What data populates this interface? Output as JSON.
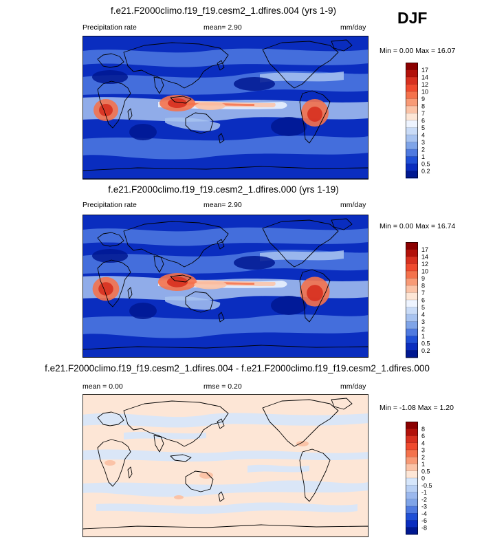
{
  "season": "DJF",
  "panels": [
    {
      "id": "top",
      "title": "f.e21.F2000climo.f19_f19.cesm2_1.dfires.004 (yrs 1-9)",
      "left_label": "Precipitation rate",
      "center_label": "mean=  2.90",
      "right_label": "mm/day",
      "minmax": "Min =  0.00 Max = 16.07"
    },
    {
      "id": "middle",
      "title": "f.e21.F2000climo.f19_f19.cesm2_1.dfires.000 (yrs 1-19)",
      "left_label": "Precipitation rate",
      "center_label": "mean=  2.90",
      "right_label": "mm/day",
      "minmax": "Min =  0.00 Max = 16.74"
    },
    {
      "id": "bottom",
      "title": "f.e21.F2000climo.f19_f19.cesm2_1.dfires.004 - f.e21.F2000climo.f19_f19.cesm2_1.dfires.000",
      "left_label": "mean =  0.00",
      "center_label": "rmse =  0.20",
      "right_label": "mm/day",
      "minmax": "Min = -1.08 Max =  1.20"
    }
  ],
  "chart_data": [
    {
      "type": "heatmap",
      "title": "f.e21.F2000climo.f19_f19.cesm2_1.dfires.004 (yrs 1-9)",
      "variable": "Precipitation rate",
      "units": "mm/day",
      "mean": 2.9,
      "min": 0.0,
      "max": 16.07,
      "colorbar_levels": [
        "17",
        "14",
        "12",
        "10",
        "9",
        "8",
        "7",
        "6",
        "5",
        "4",
        "3",
        "2",
        "1",
        "0.5",
        "0.2"
      ],
      "colorbar_colors": [
        "#8b0000",
        "#b2110a",
        "#d7301f",
        "#ef4a2e",
        "#f4724c",
        "#f89a76",
        "#fbc3a7",
        "#fde6d6",
        "#eef4ff",
        "#c9dbf7",
        "#a8c3f0",
        "#7fa4e8",
        "#4f7ae0",
        "#1f4fd6",
        "#0a2dbf",
        "#001891"
      ]
    },
    {
      "type": "heatmap",
      "title": "f.e21.F2000climo.f19_f19.cesm2_1.dfires.000 (yrs 1-19)",
      "variable": "Precipitation rate",
      "units": "mm/day",
      "mean": 2.9,
      "min": 0.0,
      "max": 16.74,
      "colorbar_levels": [
        "17",
        "14",
        "12",
        "10",
        "9",
        "8",
        "7",
        "6",
        "5",
        "4",
        "3",
        "2",
        "1",
        "0.5",
        "0.2"
      ],
      "colorbar_colors": [
        "#8b0000",
        "#b2110a",
        "#d7301f",
        "#ef4a2e",
        "#f4724c",
        "#f89a76",
        "#fbc3a7",
        "#fde6d6",
        "#eef4ff",
        "#c9dbf7",
        "#a8c3f0",
        "#7fa4e8",
        "#4f7ae0",
        "#1f4fd6",
        "#0a2dbf",
        "#001891"
      ]
    },
    {
      "type": "heatmap",
      "title": "f.e21.F2000climo.f19_f19.cesm2_1.dfires.004 - f.e21.F2000climo.f19_f19.cesm2_1.dfires.000",
      "units": "mm/day",
      "mean": 0.0,
      "rmse": 0.2,
      "min": -1.08,
      "max": 1.2,
      "colorbar_levels": [
        "8",
        "6",
        "4",
        "3",
        "2",
        "1",
        "0.5",
        "0",
        "-0.5",
        "-1",
        "-2",
        "-3",
        "-4",
        "-6",
        "-8"
      ],
      "colorbar_colors": [
        "#8b0000",
        "#b2110a",
        "#d7301f",
        "#ef4a2e",
        "#f4724c",
        "#f89a76",
        "#fbc3a7",
        "#fde6d6",
        "#d6e6fb",
        "#b9d0f4",
        "#9bb8ee",
        "#7fa4e8",
        "#4f7ae0",
        "#1f4fd6",
        "#0a2dbf",
        "#001891"
      ]
    }
  ],
  "map_colors": {
    "deep": "#0a2dbf",
    "mid": "#4f7ae0",
    "light": "#a8c3f0",
    "pale": "#eef4ff",
    "peach": "#fbc3a7",
    "orange": "#f4724c",
    "red": "#d7301f",
    "diff_bg": "#fde6d6",
    "diff_blue": "#d6e6fb"
  }
}
